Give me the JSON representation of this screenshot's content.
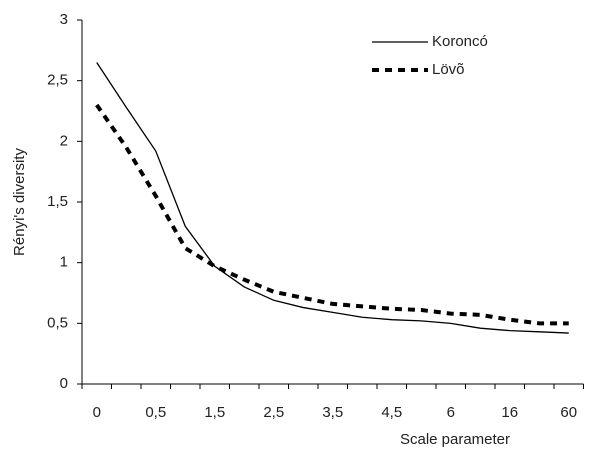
{
  "chart_data": {
    "type": "line",
    "y_label": "Rényi's diversity",
    "x_label": "Scale parameter",
    "categories": [
      "0",
      null,
      "0,5",
      null,
      "1,5",
      null,
      "2,5",
      null,
      "3,5",
      null,
      "4,5",
      null,
      "6",
      null,
      "16",
      null,
      "60"
    ],
    "series": [
      {
        "name": "Koroncó",
        "color": "#000000",
        "dash": false,
        "values": [
          2.65,
          2.28,
          1.92,
          1.3,
          0.97,
          0.8,
          0.69,
          0.63,
          0.59,
          0.55,
          0.53,
          0.52,
          0.5,
          0.46,
          0.44,
          0.43,
          0.42
        ]
      },
      {
        "name": "Lövõ",
        "color": "#000000",
        "dash": true,
        "values": [
          2.3,
          1.95,
          1.55,
          1.12,
          0.97,
          0.86,
          0.76,
          0.71,
          0.66,
          0.64,
          0.62,
          0.61,
          0.58,
          0.57,
          0.53,
          0.5,
          0.5
        ]
      }
    ],
    "ylim": [
      0,
      3
    ],
    "yticks": [
      0,
      {
        "value": 0.5,
        "label": "0,5"
      },
      1,
      {
        "value": 1.5,
        "label": "1,5"
      },
      2,
      {
        "value": 2.5,
        "label": "2,5"
      },
      3
    ],
    "grid": false,
    "legend": "top-right"
  }
}
